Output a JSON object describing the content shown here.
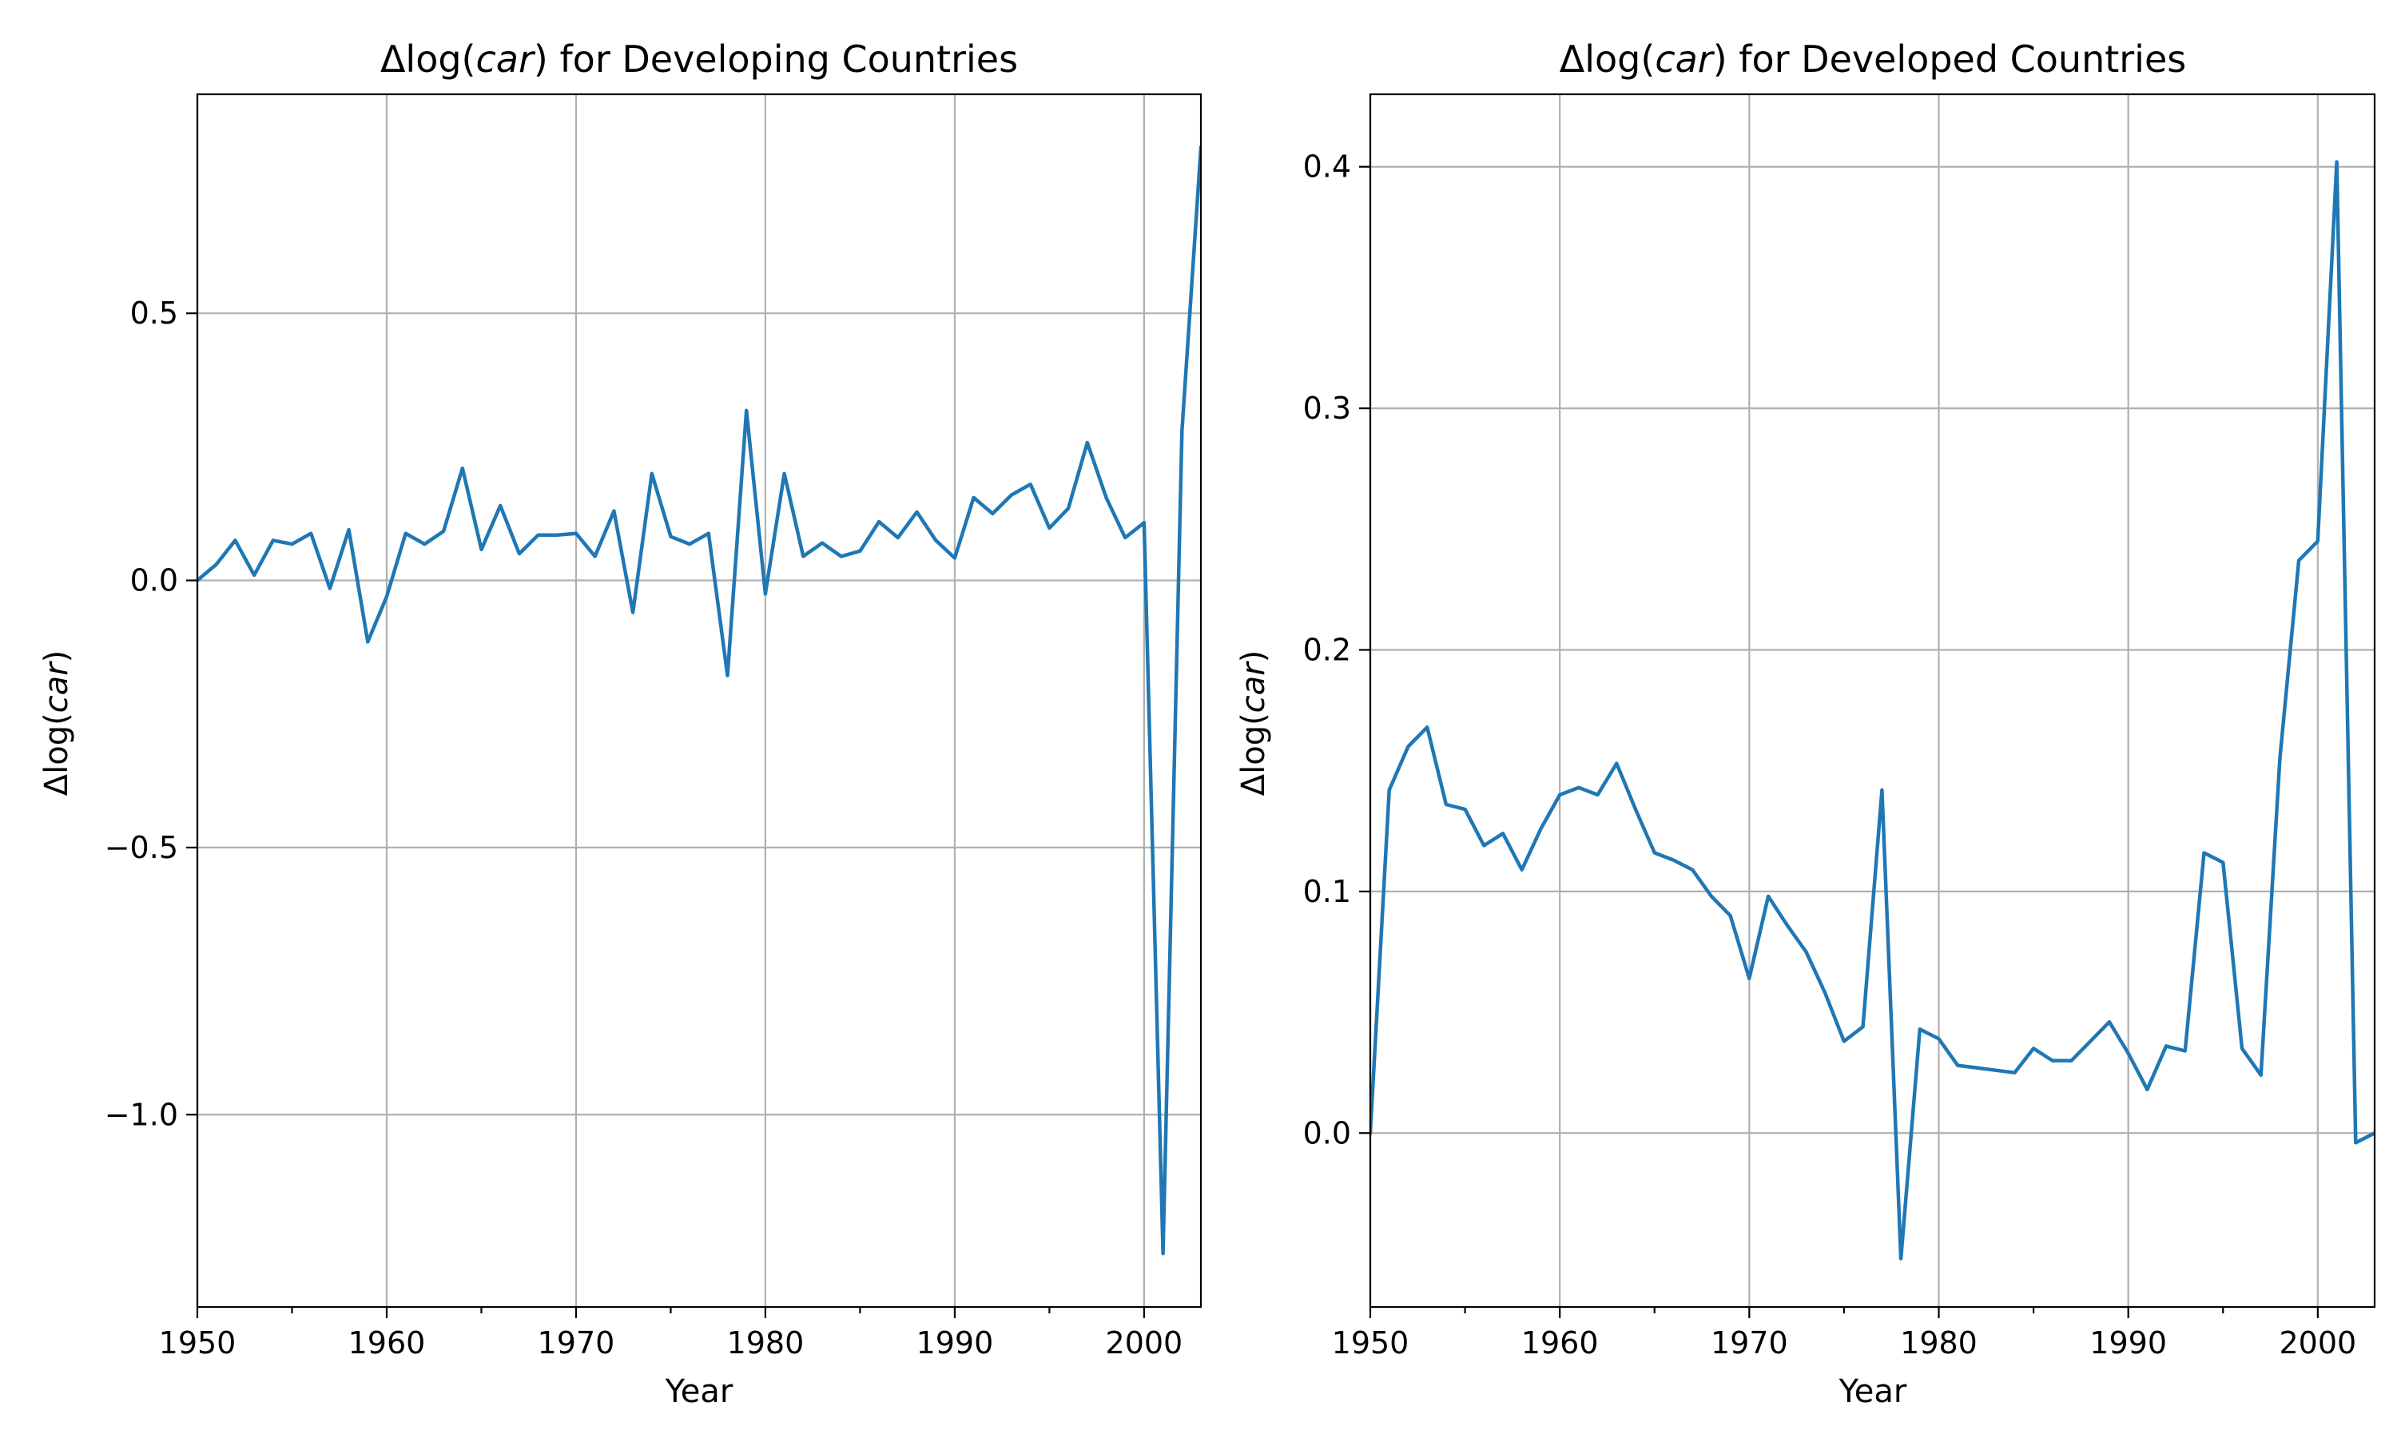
{
  "chart_data": [
    {
      "type": "line",
      "title_parts": [
        "Δlog(",
        "car",
        ") for Developing Countries"
      ],
      "xlabel": "Year",
      "ylabel_parts": [
        "Δlog(",
        "car",
        ")"
      ],
      "xlim": [
        1950,
        2003
      ],
      "ylim": [
        -1.36,
        0.91
      ],
      "xticks": [
        1950,
        1960,
        1970,
        1980,
        1990,
        2000
      ],
      "xtick_labels": [
        "1950",
        "1960",
        "1970",
        "1980",
        "1990",
        "2000"
      ],
      "yticks": [
        0.5,
        0.0,
        -0.5,
        -1.0
      ],
      "ytick_labels": [
        "0.5",
        "0.0",
        "−0.5",
        "−1.0"
      ],
      "grid": true,
      "color": "#1f77b4",
      "series": [
        {
          "x": [
            1950,
            1951,
            1952,
            1953,
            1954,
            1955,
            1956,
            1957,
            1958,
            1959,
            1960,
            1961,
            1962,
            1963,
            1964,
            1965,
            1966,
            1967,
            1968,
            1969,
            1970,
            1971,
            1972,
            1973,
            1974,
            1975,
            1976,
            1977,
            1978,
            1979,
            1980,
            1981,
            1982,
            1983,
            1984,
            1985,
            1986,
            1987,
            1988,
            1989,
            1990,
            1991,
            1992,
            1993,
            1994,
            1995,
            1996,
            1997,
            1998,
            1999,
            2000,
            2001,
            2002,
            2003
          ],
          "values": [
            0.0,
            0.03,
            0.075,
            0.01,
            0.075,
            0.068,
            0.088,
            -0.015,
            0.095,
            -0.115,
            -0.03,
            0.088,
            0.068,
            0.092,
            0.21,
            0.058,
            0.14,
            0.05,
            0.085,
            0.085,
            0.088,
            0.045,
            0.13,
            -0.06,
            0.2,
            0.082,
            0.068,
            0.088,
            -0.178,
            0.318,
            -0.025,
            0.2,
            0.045,
            0.07,
            0.045,
            0.055,
            0.11,
            0.08,
            0.128,
            0.075,
            0.042,
            0.155,
            0.125,
            0.16,
            0.18,
            0.098,
            0.135,
            0.258,
            0.155,
            0.08,
            0.108,
            -1.26,
            0.28,
            0.81
          ]
        }
      ]
    },
    {
      "type": "line",
      "title_parts": [
        "Δlog(",
        "car",
        ") for Developed Countries"
      ],
      "xlabel": "Year",
      "ylabel_parts": [
        "Δlog(",
        "car",
        ")"
      ],
      "xlim": [
        1950,
        2003
      ],
      "ylim": [
        -0.072,
        0.43
      ],
      "xticks": [
        1950,
        1960,
        1970,
        1980,
        1990,
        2000
      ],
      "xtick_labels": [
        "1950",
        "1960",
        "1970",
        "1980",
        "1990",
        "2000"
      ],
      "yticks": [
        0.0,
        0.1,
        0.2,
        0.3,
        0.4
      ],
      "ytick_labels": [
        "0.0",
        "0.1",
        "0.2",
        "0.3",
        "0.4"
      ],
      "grid": true,
      "color": "#1f77b4",
      "series": [
        {
          "x": [
            1950,
            1951,
            1952,
            1953,
            1954,
            1955,
            1956,
            1957,
            1958,
            1959,
            1960,
            1961,
            1962,
            1963,
            1964,
            1965,
            1966,
            1967,
            1968,
            1969,
            1970,
            1971,
            1972,
            1973,
            1974,
            1975,
            1976,
            1977,
            1978,
            1979,
            1980,
            1981,
            1982,
            1983,
            1984,
            1985,
            1986,
            1987,
            1988,
            1989,
            1990,
            1991,
            1992,
            1993,
            1994,
            1995,
            1996,
            1997,
            1998,
            1999,
            2000,
            2001,
            2002,
            2003
          ],
          "values": [
            0.0,
            0.142,
            0.16,
            0.168,
            0.136,
            0.134,
            0.119,
            0.124,
            0.109,
            0.126,
            0.14,
            0.143,
            0.14,
            0.153,
            0.134,
            0.116,
            0.113,
            0.109,
            0.098,
            0.09,
            0.064,
            0.098,
            0.086,
            0.075,
            0.058,
            0.038,
            0.044,
            0.142,
            -0.052,
            0.043,
            0.039,
            0.028,
            0.027,
            0.026,
            0.025,
            0.035,
            0.03,
            0.03,
            0.038,
            0.046,
            0.033,
            0.018,
            0.036,
            0.034,
            0.116,
            0.112,
            0.035,
            0.024,
            0.155,
            0.237,
            0.245,
            0.402,
            -0.004,
            0.0
          ]
        }
      ]
    }
  ]
}
